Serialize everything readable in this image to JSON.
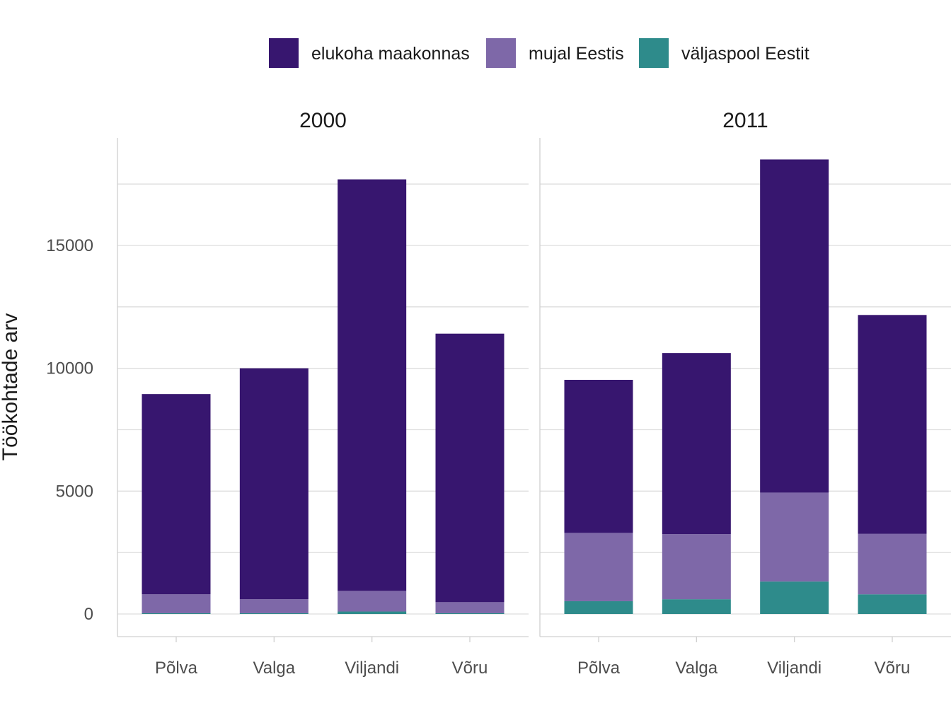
{
  "chart_data": {
    "type": "bar",
    "stacked": true,
    "ylabel": "Töökohtade arv",
    "xlabel": "",
    "ylim": [
      -900,
      19500
    ],
    "yticks": [
      0,
      5000,
      10000,
      15000
    ],
    "grid": true,
    "legend_position": "top",
    "categories": [
      "Põlva",
      "Valga",
      "Viljandi",
      "Võru"
    ],
    "series": [
      {
        "name": "väljaspool Eestit",
        "color": "#2e8b8b"
      },
      {
        "name": "mujal Eestis",
        "color": "#7e68a8"
      },
      {
        "name": "elukoha maakonnas",
        "color": "#37166f"
      }
    ],
    "legend_order": [
      "elukoha maakonnas",
      "mujal Eestis",
      "väljaspool Eestit"
    ],
    "facets": [
      {
        "label": "2000",
        "values": {
          "väljaspool Eestit": [
            30,
            30,
            100,
            30
          ],
          "mujal Eestis": [
            770,
            570,
            840,
            450
          ],
          "elukoha maakonnas": [
            8150,
            9400,
            16750,
            10930
          ]
        }
      },
      {
        "label": "2011",
        "values": {
          "väljaspool Eestit": [
            520,
            600,
            1320,
            800
          ],
          "mujal Eestis": [
            2780,
            2650,
            3620,
            2460
          ],
          "elukoha maakonnas": [
            6230,
            7370,
            13560,
            8910
          ]
        }
      }
    ]
  }
}
